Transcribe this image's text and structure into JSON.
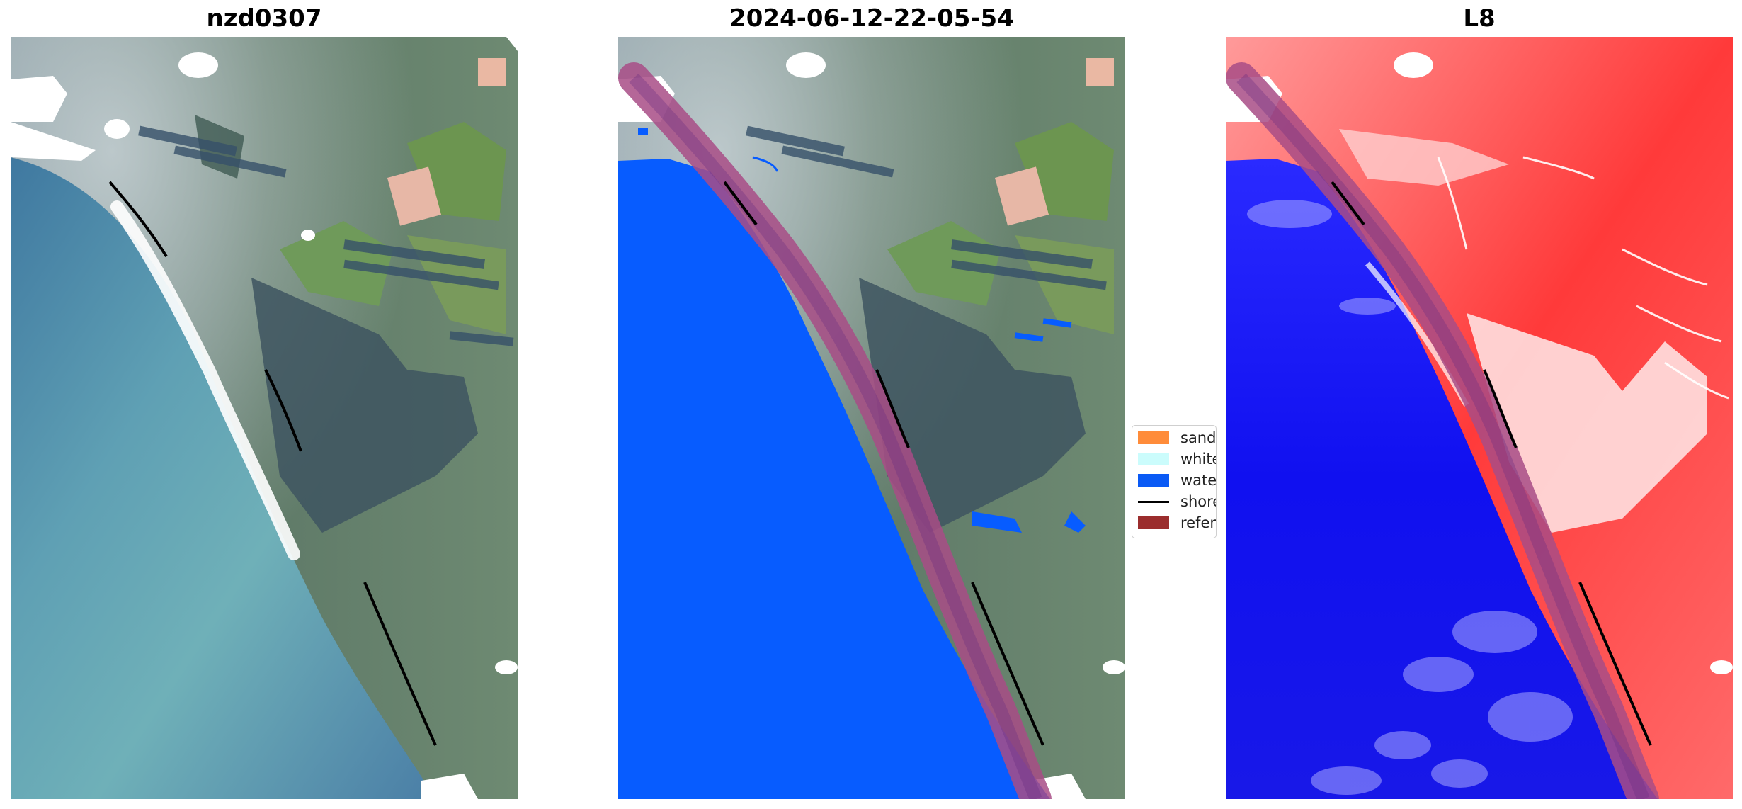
{
  "panels": [
    {
      "title": "nzd0307"
    },
    {
      "title": "2024-06-12-22-05-54"
    },
    {
      "title": "L8"
    }
  ],
  "legend": {
    "items": [
      {
        "label": "sand",
        "color": "#ff8c3a"
      },
      {
        "label": "whitew",
        "color": "#cbfcfc"
      },
      {
        "label": "water",
        "color": "#0a5af5"
      },
      {
        "label": "shorel",
        "color": "#000000"
      },
      {
        "label": "referen",
        "color": "#9b2d2d"
      }
    ]
  },
  "colors": {
    "ocean": "#4a86a8",
    "land": "#5e7c6a",
    "water_mask": "#075cff",
    "buffer": "#a84c86",
    "shoreline": "#000000",
    "index_water": "#1a1aff",
    "index_land": "#ff3030"
  }
}
